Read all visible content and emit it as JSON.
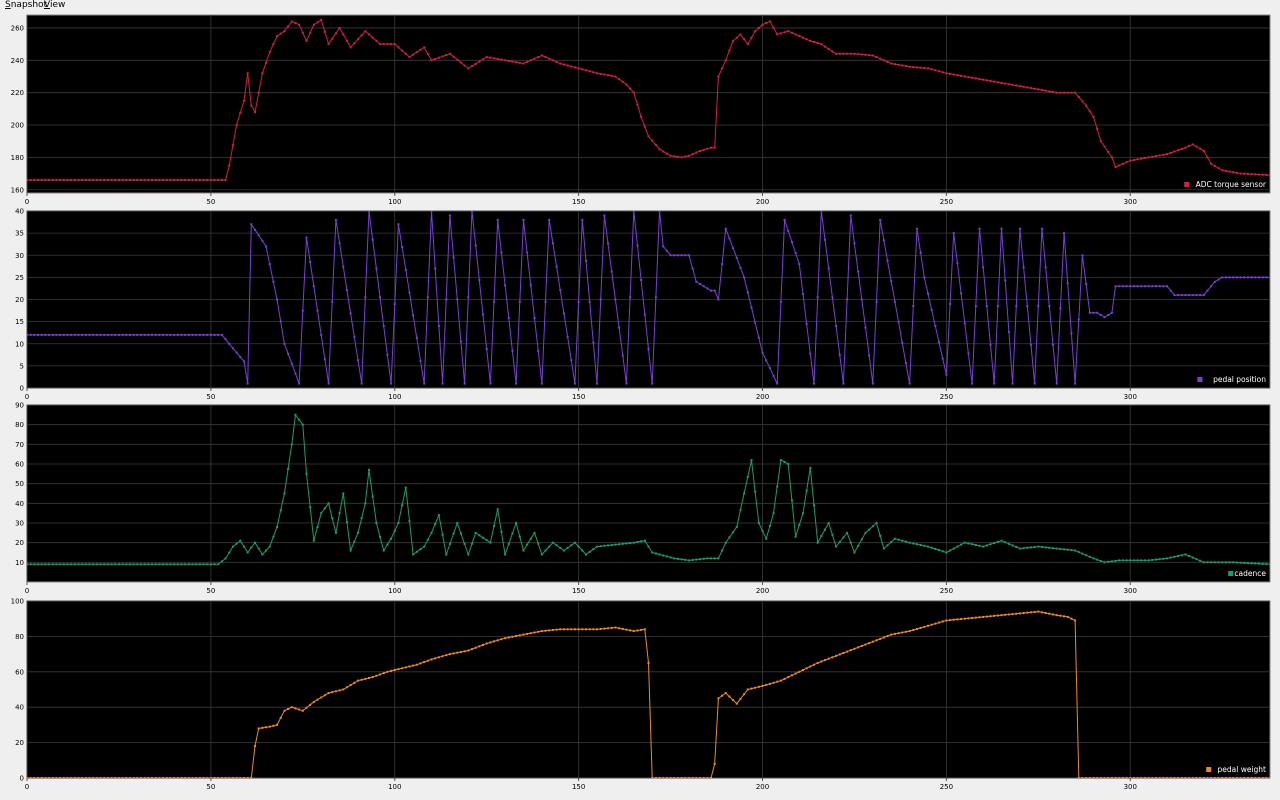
{
  "menu": [
    {
      "mnemonic": "S",
      "rest": "napshot"
    },
    {
      "mnemonic": "V",
      "rest": "iew"
    }
  ],
  "chart_data": [
    {
      "type": "line",
      "series": [
        {
          "name": "ADC torque sensor",
          "color": "#d81b4a"
        }
      ],
      "xlim": [
        0,
        338
      ],
      "ylim": [
        158,
        268
      ],
      "xticks": [
        0,
        50,
        100,
        150,
        200,
        250,
        300
      ],
      "yticks": [
        160,
        180,
        200,
        220,
        240,
        260
      ],
      "legend": "bottom-right",
      "grid": true,
      "keypoints": [
        [
          0,
          166
        ],
        [
          54,
          166
        ],
        [
          55,
          175
        ],
        [
          57,
          200
        ],
        [
          59,
          215
        ],
        [
          60,
          232
        ],
        [
          61,
          212
        ],
        [
          62,
          208
        ],
        [
          64,
          232
        ],
        [
          66,
          245
        ],
        [
          68,
          255
        ],
        [
          70,
          258
        ],
        [
          72,
          264
        ],
        [
          74,
          262
        ],
        [
          76,
          252
        ],
        [
          78,
          262
        ],
        [
          80,
          265
        ],
        [
          82,
          250
        ],
        [
          85,
          260
        ],
        [
          88,
          248
        ],
        [
          92,
          258
        ],
        [
          96,
          250
        ],
        [
          100,
          250
        ],
        [
          104,
          242
        ],
        [
          108,
          248
        ],
        [
          110,
          240
        ],
        [
          115,
          244
        ],
        [
          120,
          235
        ],
        [
          125,
          242
        ],
        [
          130,
          240
        ],
        [
          135,
          238
        ],
        [
          140,
          243
        ],
        [
          145,
          238
        ],
        [
          150,
          235
        ],
        [
          155,
          232
        ],
        [
          160,
          230
        ],
        [
          163,
          225
        ],
        [
          165,
          220
        ],
        [
          167,
          205
        ],
        [
          169,
          193
        ],
        [
          172,
          185
        ],
        [
          175,
          181
        ],
        [
          178,
          180
        ],
        [
          180,
          181
        ],
        [
          183,
          184
        ],
        [
          186,
          186
        ],
        [
          187,
          186
        ],
        [
          188,
          230
        ],
        [
          190,
          240
        ],
        [
          192,
          252
        ],
        [
          194,
          256
        ],
        [
          196,
          250
        ],
        [
          198,
          258
        ],
        [
          200,
          262
        ],
        [
          202,
          264
        ],
        [
          204,
          256
        ],
        [
          207,
          258
        ],
        [
          210,
          255
        ],
        [
          213,
          252
        ],
        [
          216,
          250
        ],
        [
          220,
          244
        ],
        [
          225,
          244
        ],
        [
          230,
          243
        ],
        [
          235,
          238
        ],
        [
          240,
          236
        ],
        [
          245,
          235
        ],
        [
          250,
          232
        ],
        [
          255,
          230
        ],
        [
          260,
          228
        ],
        [
          265,
          226
        ],
        [
          270,
          224
        ],
        [
          275,
          222
        ],
        [
          280,
          220
        ],
        [
          285,
          220
        ],
        [
          288,
          212
        ],
        [
          290,
          205
        ],
        [
          292,
          190
        ],
        [
          295,
          180
        ],
        [
          296,
          174
        ],
        [
          300,
          178
        ],
        [
          305,
          180
        ],
        [
          310,
          182
        ],
        [
          315,
          186
        ],
        [
          317,
          188
        ],
        [
          320,
          184
        ],
        [
          322,
          176
        ],
        [
          325,
          172
        ],
        [
          330,
          170
        ],
        [
          338,
          169
        ]
      ]
    },
    {
      "type": "line",
      "series": [
        {
          "name": "pedal position",
          "color": "#7b3fd6"
        }
      ],
      "xlim": [
        0,
        338
      ],
      "ylim": [
        0,
        40
      ],
      "xticks": [
        0,
        50,
        100,
        150,
        200,
        250,
        300
      ],
      "yticks": [
        0,
        5,
        10,
        15,
        20,
        25,
        30,
        35,
        40
      ],
      "legend": "bottom-right",
      "grid": true,
      "keypoints": [
        [
          0,
          12
        ],
        [
          53,
          12
        ],
        [
          55,
          10
        ],
        [
          57,
          8
        ],
        [
          59,
          6
        ],
        [
          60,
          1
        ],
        [
          61,
          37
        ],
        [
          65,
          32
        ],
        [
          68,
          20
        ],
        [
          70,
          10
        ],
        [
          74,
          1
        ],
        [
          76,
          34
        ],
        [
          82,
          1
        ],
        [
          84,
          38
        ],
        [
          91,
          1
        ],
        [
          93,
          40
        ],
        [
          99,
          1
        ],
        [
          101,
          37
        ],
        [
          108,
          1
        ],
        [
          110,
          40
        ],
        [
          113,
          1
        ],
        [
          115,
          39
        ],
        [
          119,
          1
        ],
        [
          121,
          40
        ],
        [
          126,
          1
        ],
        [
          128,
          38
        ],
        [
          133,
          1
        ],
        [
          135,
          38
        ],
        [
          140,
          1
        ],
        [
          142,
          38
        ],
        [
          149,
          1
        ],
        [
          151,
          38
        ],
        [
          155,
          1
        ],
        [
          157,
          39
        ],
        [
          163,
          1
        ],
        [
          165,
          40
        ],
        [
          170,
          1
        ],
        [
          172,
          40
        ],
        [
          173,
          32
        ],
        [
          175,
          30
        ],
        [
          180,
          30
        ],
        [
          182,
          24
        ],
        [
          186,
          22
        ],
        [
          187,
          22
        ],
        [
          188,
          20
        ],
        [
          190,
          36
        ],
        [
          195,
          25
        ],
        [
          200,
          8
        ],
        [
          204,
          1
        ],
        [
          206,
          38
        ],
        [
          210,
          28
        ],
        [
          214,
          1
        ],
        [
          216,
          40
        ],
        [
          222,
          1
        ],
        [
          224,
          39
        ],
        [
          230,
          1
        ],
        [
          232,
          38
        ],
        [
          240,
          1
        ],
        [
          242,
          36
        ],
        [
          244,
          25
        ],
        [
          250,
          3
        ],
        [
          252,
          35
        ],
        [
          257,
          1
        ],
        [
          259,
          36
        ],
        [
          263,
          1
        ],
        [
          265,
          36
        ],
        [
          268,
          1
        ],
        [
          270,
          36
        ],
        [
          274,
          1
        ],
        [
          276,
          36
        ],
        [
          280,
          1
        ],
        [
          282,
          35
        ],
        [
          285,
          1
        ],
        [
          287,
          30
        ],
        [
          289,
          17
        ],
        [
          291,
          17
        ],
        [
          293,
          16
        ],
        [
          295,
          17
        ],
        [
          296,
          23
        ],
        [
          310,
          23
        ],
        [
          312,
          21
        ],
        [
          320,
          21
        ],
        [
          323,
          24
        ],
        [
          325,
          25
        ],
        [
          338,
          25
        ]
      ]
    },
    {
      "type": "line",
      "series": [
        {
          "name": "cadence",
          "color": "#16a06a"
        }
      ],
      "xlim": [
        0,
        338
      ],
      "ylim": [
        0,
        90
      ],
      "xticks": [
        0,
        50,
        100,
        150,
        200,
        250,
        300
      ],
      "yticks": [
        10,
        20,
        30,
        40,
        50,
        60,
        70,
        80,
        90
      ],
      "legend": "bottom-right",
      "grid": true,
      "keypoints": [
        [
          0,
          9
        ],
        [
          52,
          9
        ],
        [
          54,
          12
        ],
        [
          56,
          18
        ],
        [
          58,
          21
        ],
        [
          60,
          15
        ],
        [
          62,
          20
        ],
        [
          64,
          14
        ],
        [
          66,
          18
        ],
        [
          68,
          28
        ],
        [
          70,
          45
        ],
        [
          72,
          70
        ],
        [
          73,
          85
        ],
        [
          75,
          80
        ],
        [
          76,
          55
        ],
        [
          78,
          21
        ],
        [
          80,
          35
        ],
        [
          82,
          40
        ],
        [
          84,
          25
        ],
        [
          86,
          45
        ],
        [
          88,
          16
        ],
        [
          90,
          25
        ],
        [
          92,
          40
        ],
        [
          93,
          57
        ],
        [
          95,
          30
        ],
        [
          97,
          16
        ],
        [
          99,
          22
        ],
        [
          101,
          30
        ],
        [
          103,
          48
        ],
        [
          105,
          14
        ],
        [
          108,
          18
        ],
        [
          110,
          25
        ],
        [
          112,
          34
        ],
        [
          114,
          14
        ],
        [
          117,
          30
        ],
        [
          120,
          14
        ],
        [
          122,
          25
        ],
        [
          126,
          20
        ],
        [
          128,
          37
        ],
        [
          130,
          14
        ],
        [
          133,
          30
        ],
        [
          135,
          16
        ],
        [
          138,
          25
        ],
        [
          140,
          14
        ],
        [
          143,
          20
        ],
        [
          146,
          16
        ],
        [
          149,
          20
        ],
        [
          152,
          14
        ],
        [
          155,
          18
        ],
        [
          160,
          19
        ],
        [
          165,
          20
        ],
        [
          168,
          21
        ],
        [
          170,
          15
        ],
        [
          172,
          14
        ],
        [
          176,
          12
        ],
        [
          180,
          11
        ],
        [
          185,
          12
        ],
        [
          188,
          12
        ],
        [
          190,
          20
        ],
        [
          193,
          28
        ],
        [
          195,
          45
        ],
        [
          197,
          62
        ],
        [
          199,
          30
        ],
        [
          201,
          22
        ],
        [
          203,
          35
        ],
        [
          205,
          62
        ],
        [
          207,
          60
        ],
        [
          209,
          23
        ],
        [
          211,
          35
        ],
        [
          213,
          58
        ],
        [
          215,
          20
        ],
        [
          218,
          30
        ],
        [
          220,
          18
        ],
        [
          223,
          25
        ],
        [
          225,
          15
        ],
        [
          228,
          25
        ],
        [
          231,
          30
        ],
        [
          233,
          17
        ],
        [
          236,
          22
        ],
        [
          240,
          20
        ],
        [
          245,
          18
        ],
        [
          250,
          15
        ],
        [
          255,
          20
        ],
        [
          260,
          18
        ],
        [
          265,
          21
        ],
        [
          270,
          17
        ],
        [
          275,
          18
        ],
        [
          280,
          17
        ],
        [
          285,
          16
        ],
        [
          290,
          12
        ],
        [
          293,
          10
        ],
        [
          297,
          11
        ],
        [
          305,
          11
        ],
        [
          310,
          12
        ],
        [
          315,
          14
        ],
        [
          320,
          10
        ],
        [
          328,
          10
        ],
        [
          338,
          9
        ]
      ]
    },
    {
      "type": "line",
      "series": [
        {
          "name": "pedal weight",
          "color": "#f08a20"
        }
      ],
      "xlim": [
        0,
        338
      ],
      "ylim": [
        0,
        100
      ],
      "xticks": [
        0,
        50,
        100,
        150,
        200,
        250,
        300
      ],
      "yticks": [
        0,
        20,
        40,
        60,
        80,
        100
      ],
      "legend": "bottom-right",
      "grid": true,
      "keypoints": [
        [
          0,
          0
        ],
        [
          61,
          0
        ],
        [
          62,
          18
        ],
        [
          63,
          28
        ],
        [
          66,
          29
        ],
        [
          68,
          30
        ],
        [
          70,
          38
        ],
        [
          72,
          40
        ],
        [
          75,
          38
        ],
        [
          78,
          43
        ],
        [
          82,
          48
        ],
        [
          86,
          50
        ],
        [
          90,
          55
        ],
        [
          94,
          57
        ],
        [
          98,
          60
        ],
        [
          102,
          62
        ],
        [
          106,
          64
        ],
        [
          110,
          67
        ],
        [
          115,
          70
        ],
        [
          120,
          72
        ],
        [
          125,
          76
        ],
        [
          130,
          79
        ],
        [
          135,
          81
        ],
        [
          140,
          83
        ],
        [
          145,
          84
        ],
        [
          150,
          84
        ],
        [
          155,
          84
        ],
        [
          160,
          85
        ],
        [
          165,
          83
        ],
        [
          168,
          84
        ],
        [
          169,
          65
        ],
        [
          170,
          0
        ],
        [
          186,
          0
        ],
        [
          187,
          8
        ],
        [
          188,
          45
        ],
        [
          190,
          48
        ],
        [
          193,
          42
        ],
        [
          196,
          50
        ],
        [
          200,
          52
        ],
        [
          205,
          55
        ],
        [
          210,
          60
        ],
        [
          215,
          65
        ],
        [
          220,
          69
        ],
        [
          225,
          73
        ],
        [
          230,
          77
        ],
        [
          235,
          81
        ],
        [
          240,
          83
        ],
        [
          245,
          86
        ],
        [
          250,
          89
        ],
        [
          255,
          90
        ],
        [
          260,
          91
        ],
        [
          265,
          92
        ],
        [
          270,
          93
        ],
        [
          275,
          94
        ],
        [
          280,
          92
        ],
        [
          283,
          91
        ],
        [
          285,
          89
        ],
        [
          286,
          0
        ],
        [
          338,
          0
        ]
      ]
    }
  ]
}
